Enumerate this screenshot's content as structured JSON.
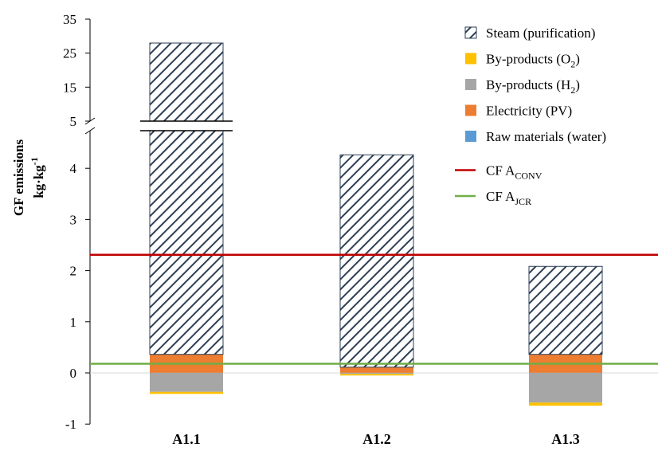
{
  "chart_data": {
    "type": "bar",
    "stacked": true,
    "broken_y_axis": true,
    "ylabel_line1": "GF emissions",
    "ylabel_line2_base": "kg·kg",
    "ylabel_line2_sup": "-1",
    "categories": [
      "A1.1",
      "A1.2",
      "A1.3"
    ],
    "lower_ticks": [
      "-1",
      "0",
      "1",
      "2",
      "3",
      "4"
    ],
    "upper_ticks": [
      "5",
      "15",
      "25",
      "35"
    ],
    "series": [
      {
        "name": "Steam (purification)",
        "values": [
          27.6,
          4.15,
          1.72
        ],
        "color": "#2e3f55",
        "pattern": "diagonal-hatch"
      },
      {
        "name": "By-products (O2)",
        "values": [
          -0.04,
          -0.03,
          -0.06
        ],
        "color": "#ffc000"
      },
      {
        "name": "By-products (H2)",
        "values": [
          -0.37,
          -0.02,
          -0.58
        ],
        "color": "#a6a6a6"
      },
      {
        "name": "Electricity (PV)",
        "values": [
          0.36,
          0.11,
          0.36
        ],
        "color": "#ed7d31"
      },
      {
        "name": "Raw materials (water)",
        "values": [
          0.003,
          0.003,
          0.003
        ],
        "color": "#5b9bd5"
      }
    ],
    "reference_lines": [
      {
        "name": "CF A_CONV",
        "value": 2.31,
        "color": "#c00000"
      },
      {
        "name": "CF A_JCR",
        "value": 0.18,
        "color": "#70ad47"
      }
    ],
    "legend": {
      "position": "top-right",
      "entries": [
        {
          "label": "Steam (purification)",
          "sub": "",
          "after": ""
        },
        {
          "label": "By-products (O",
          "sub": "2",
          "after": ")"
        },
        {
          "label": "By-products (H",
          "sub": "2",
          "after": ")"
        },
        {
          "label": "Electricity (PV)",
          "sub": "",
          "after": ""
        },
        {
          "label": "Raw materials (water)",
          "sub": "",
          "after": ""
        },
        {
          "label": "CF A",
          "sub": "CONV",
          "after": ""
        },
        {
          "label": "CF A",
          "sub": "JCR",
          "after": ""
        }
      ]
    }
  }
}
